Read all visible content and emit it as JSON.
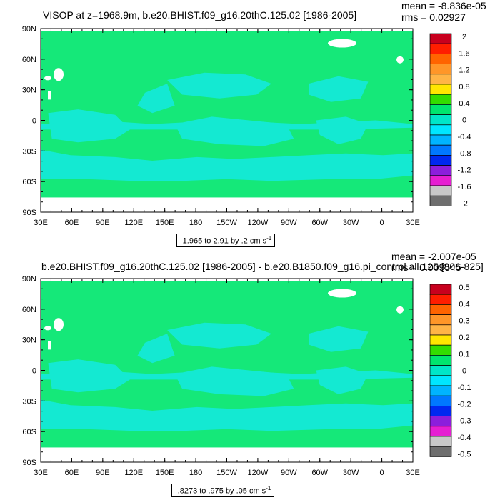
{
  "panels": [
    {
      "title": "VISOP at z=1968.9m, b.e20.BHIST.f09_g16.20thC.125.02 [1986-2005]",
      "mean": "mean = -8.836e-05",
      "rms": "rms = 0.02927",
      "range_text": "-1.965 to 2.91 by .2 cm s",
      "range_unit_exp": "-1",
      "colorbar_labels": [
        "2",
        "1.6",
        "1.2",
        "0.8",
        "0.4",
        "0",
        "-0.4",
        "-0.8",
        "-1.2",
        "-1.6",
        "-2"
      ]
    },
    {
      "title": "b.e20.BHIST.f09_g16.20thC.125.02 [1986-2005] - b.e20.B1850.f09_g16.pi_control.all.125 [806-825]",
      "mean": "mean = -2.007e-05",
      "rms": "rms = 0.009545",
      "range_text": "-.8273 to .975 by .05 cm s",
      "range_unit_exp": "-1",
      "colorbar_labels": [
        "0.5",
        "0.4",
        "0.3",
        "0.2",
        "0.1",
        "0",
        "-0.1",
        "-0.2",
        "-0.3",
        "-0.4",
        "-0.5"
      ]
    }
  ],
  "chart_data": [
    {
      "type": "heatmap",
      "title": "VISOP at z=1968.9m, b.e20.BHIST.f09_g16.20thC.125.02 [1986-2005]",
      "x_ticks": [
        "30E",
        "60E",
        "90E",
        "120E",
        "150E",
        "180",
        "150W",
        "120W",
        "90W",
        "60W",
        "30W",
        "0",
        "30E"
      ],
      "y_ticks": [
        "90N",
        "60N",
        "30N",
        "0",
        "30S",
        "60S",
        "90S"
      ],
      "xlim": [
        30,
        390
      ],
      "ylim": [
        -90,
        90
      ],
      "color_levels": [
        2,
        1.6,
        1.2,
        0.8,
        0.4,
        0,
        -0.4,
        -0.8,
        -1.2,
        -1.6,
        -2
      ],
      "dominant_value_range": [
        -0.4,
        0.4
      ],
      "mean": -8.836e-05,
      "rms": 0.02927,
      "min": -1.965,
      "max": 2.91,
      "interval": 0.2,
      "units": "cm s-1"
    },
    {
      "type": "heatmap",
      "title": "b.e20.BHIST.f09_g16.20thC.125.02 [1986-2005] - b.e20.B1850.f09_g16.pi_control.all.125 [806-825]",
      "x_ticks": [
        "30E",
        "60E",
        "90E",
        "120E",
        "150E",
        "180",
        "150W",
        "120W",
        "90W",
        "60W",
        "30W",
        "0",
        "30E"
      ],
      "y_ticks": [
        "90N",
        "60N",
        "30N",
        "0",
        "30S",
        "60S",
        "90S"
      ],
      "xlim": [
        30,
        390
      ],
      "ylim": [
        -90,
        90
      ],
      "color_levels": [
        0.5,
        0.4,
        0.3,
        0.2,
        0.1,
        0,
        -0.1,
        -0.2,
        -0.3,
        -0.4,
        -0.5
      ],
      "dominant_value_range": [
        -0.1,
        0.1
      ],
      "mean": -2.007e-05,
      "rms": 0.009545,
      "min": -0.8273,
      "max": 0.975,
      "interval": 0.05,
      "units": "cm s-1"
    }
  ],
  "colors": {
    "colorbar": [
      "#c8001e",
      "#ff1e00",
      "#ff6400",
      "#ff9628",
      "#ffb446",
      "#ffe600",
      "#33dd00",
      "#00e66e",
      "#00e6c8",
      "#00e6ff",
      "#00b4ff",
      "#0078ff",
      "#0028f0",
      "#8c1edc",
      "#e61ed2",
      "#c8c8c8",
      "#6e6e6e"
    ],
    "green": "#15e879",
    "cyan": "#14e9d2",
    "land_white": "#ffffff"
  },
  "x_ticks": [
    "30E",
    "60E",
    "90E",
    "120E",
    "150E",
    "180",
    "150W",
    "120W",
    "90W",
    "60W",
    "30W",
    "0",
    "30E"
  ],
  "y_ticks": [
    "90N",
    "60N",
    "30N",
    "0",
    "30S",
    "60S",
    "90S"
  ]
}
